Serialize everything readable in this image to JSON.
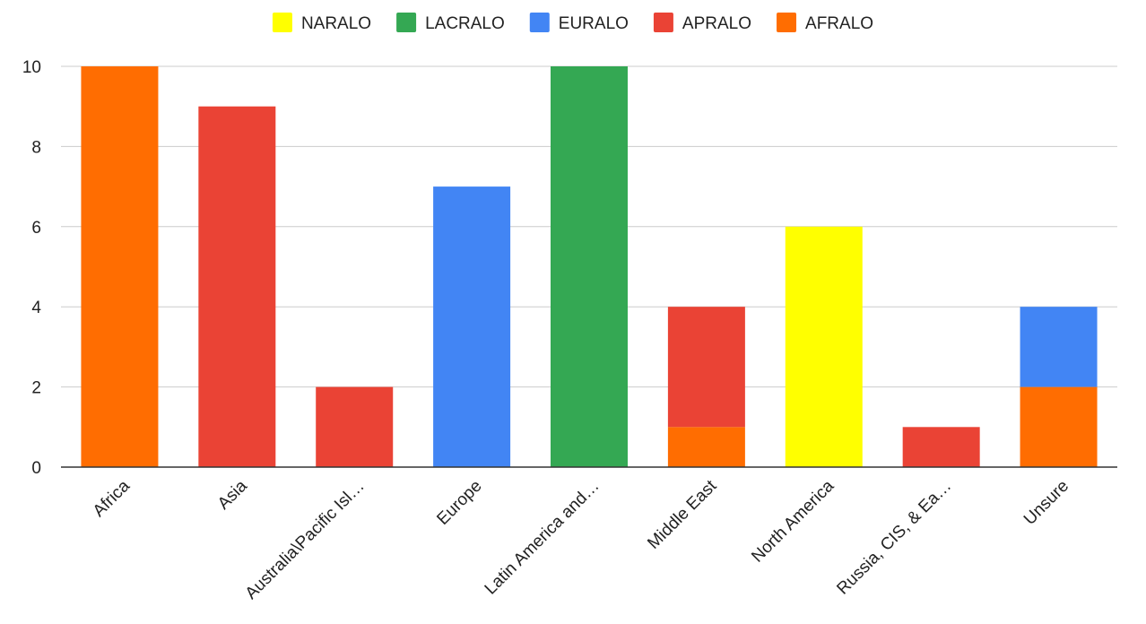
{
  "chart_data": {
    "type": "bar",
    "stacked": true,
    "title": "",
    "xlabel": "",
    "ylabel": "",
    "ylim": [
      0,
      10
    ],
    "yticks": [
      0,
      2,
      4,
      6,
      8,
      10
    ],
    "grid": true,
    "legend_position": "top",
    "categories": [
      "Africa",
      "Asia",
      "Australia\\Pacific Isl…",
      "Europe",
      "Latin America and…",
      "Middle East",
      "North America",
      "Russia, CIS, & Ea…",
      "Unsure"
    ],
    "series": [
      {
        "name": "NARALO",
        "color": "#ffff00",
        "values": [
          0,
          0,
          0,
          0,
          0,
          0,
          6,
          0,
          0
        ]
      },
      {
        "name": "LACRALO",
        "color": "#34a853",
        "values": [
          0,
          0,
          0,
          0,
          10,
          0,
          0,
          0,
          0
        ]
      },
      {
        "name": "EURALO",
        "color": "#4285f4",
        "values": [
          0,
          0,
          0,
          7,
          0,
          0,
          0,
          0,
          2
        ]
      },
      {
        "name": "APRALO",
        "color": "#ea4335",
        "values": [
          0,
          9,
          2,
          0,
          0,
          3,
          0,
          1,
          0
        ]
      },
      {
        "name": "AFRALO",
        "color": "#ff6d01",
        "values": [
          10,
          0,
          0,
          0,
          0,
          1,
          0,
          0,
          2
        ]
      }
    ],
    "stack_order_bottom_to_top": [
      "AFRALO",
      "APRALO",
      "EURALO",
      "LACRALO",
      "NARALO"
    ]
  }
}
